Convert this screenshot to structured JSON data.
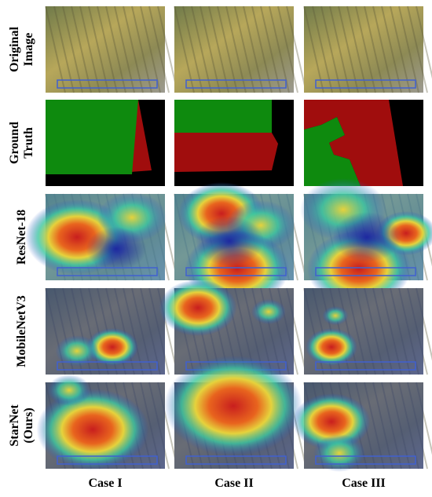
{
  "figure": {
    "rows": [
      {
        "label_lines": [
          "Original",
          "Image"
        ]
      },
      {
        "label_lines": [
          "Ground",
          "Truth"
        ]
      },
      {
        "label_lines": [
          "ResNet-18"
        ]
      },
      {
        "label_lines": [
          "MobileNetV3"
        ]
      },
      {
        "label_lines": [
          "StarNet",
          "(Ours)"
        ]
      }
    ],
    "columns": [
      "Case I",
      "Case II",
      "Case III"
    ]
  }
}
